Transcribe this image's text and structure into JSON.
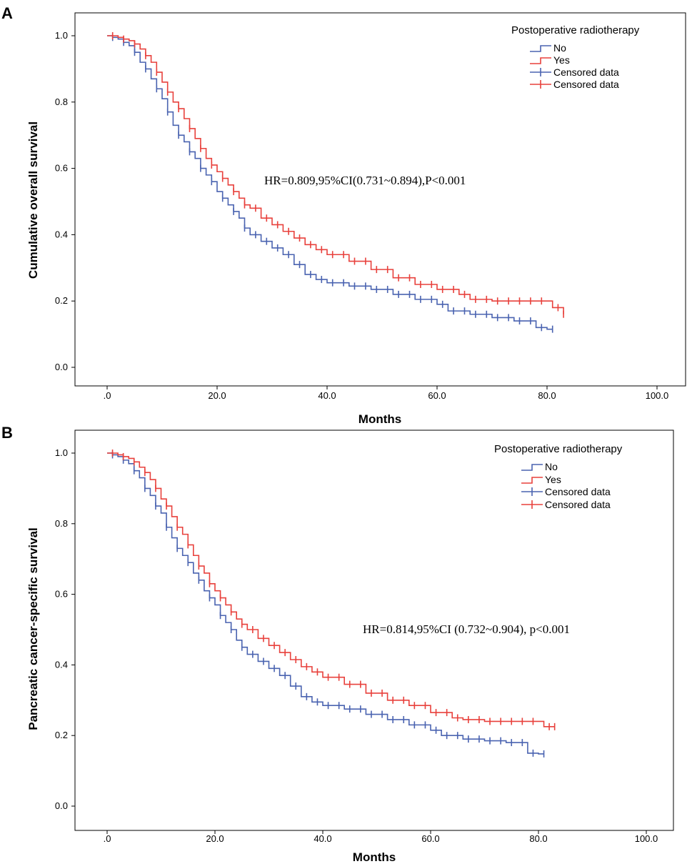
{
  "colors": {
    "no": "#4a63b0",
    "yes": "#e8413c"
  },
  "chart_data": [
    {
      "type": "line",
      "panel_label": "A",
      "xlabel": "Months",
      "ylabel": "Cumulative overall survival",
      "xlim": [
        -7,
        106
      ],
      "ylim": [
        -0.07,
        1.05
      ],
      "xticks": [
        0,
        20,
        40,
        60,
        80,
        100
      ],
      "xtick_labels": [
        ".0",
        "20.0",
        "40.0",
        "60.0",
        "80.0",
        "100.0"
      ],
      "yticks": [
        0.0,
        0.2,
        0.4,
        0.6,
        0.8,
        1.0
      ],
      "ytick_labels": [
        "0.0",
        "0.2",
        "0.4",
        "0.6",
        "0.8",
        "1.0"
      ],
      "legend": {
        "title": "Postoperative radiotherapy",
        "entries": [
          "No",
          "Yes",
          "Censored data",
          "Censored data"
        ]
      },
      "annotation": "HR=0.809,95%CI(0.731~0.894),P<0.001",
      "series": [
        {
          "name": "No",
          "color_key": "no",
          "x": [
            0,
            1,
            2,
            3,
            4,
            5,
            6,
            7,
            8,
            9,
            10,
            11,
            12,
            13,
            14,
            15,
            16,
            17,
            18,
            19,
            20,
            21,
            22,
            23,
            24,
            25,
            26,
            28,
            30,
            32,
            34,
            36,
            38,
            40,
            44,
            48,
            52,
            56,
            60,
            62,
            66,
            70,
            74,
            78,
            80,
            81
          ],
          "y": [
            1.0,
            0.995,
            0.99,
            0.98,
            0.97,
            0.95,
            0.92,
            0.9,
            0.87,
            0.84,
            0.81,
            0.77,
            0.73,
            0.7,
            0.68,
            0.65,
            0.63,
            0.6,
            0.58,
            0.56,
            0.53,
            0.51,
            0.49,
            0.47,
            0.45,
            0.42,
            0.4,
            0.38,
            0.36,
            0.34,
            0.31,
            0.28,
            0.265,
            0.255,
            0.245,
            0.235,
            0.22,
            0.205,
            0.19,
            0.17,
            0.16,
            0.15,
            0.14,
            0.12,
            0.115,
            0.115
          ],
          "censored_x": [
            1,
            3,
            5,
            7,
            9,
            11,
            13,
            15,
            17,
            19,
            21,
            23,
            25,
            27,
            29,
            31,
            33,
            35,
            37,
            39,
            41,
            43,
            45,
            47,
            49,
            51,
            53,
            55,
            57,
            59,
            61,
            63,
            65,
            67,
            69,
            71,
            73,
            75,
            77,
            79,
            81
          ]
        },
        {
          "name": "Yes",
          "color_key": "yes",
          "x": [
            0,
            1,
            2,
            3,
            4,
            5,
            6,
            7,
            8,
            9,
            10,
            11,
            12,
            13,
            14,
            15,
            16,
            17,
            18,
            19,
            20,
            21,
            22,
            23,
            24,
            25,
            26,
            28,
            30,
            32,
            34,
            36,
            38,
            40,
            44,
            48,
            52,
            56,
            60,
            64,
            66,
            70,
            80,
            81,
            83
          ],
          "y": [
            1.0,
            1.0,
            0.995,
            0.99,
            0.985,
            0.975,
            0.96,
            0.94,
            0.92,
            0.89,
            0.86,
            0.83,
            0.8,
            0.78,
            0.75,
            0.72,
            0.69,
            0.66,
            0.63,
            0.61,
            0.59,
            0.57,
            0.55,
            0.53,
            0.51,
            0.49,
            0.48,
            0.45,
            0.43,
            0.41,
            0.39,
            0.37,
            0.355,
            0.34,
            0.32,
            0.295,
            0.27,
            0.25,
            0.235,
            0.22,
            0.205,
            0.2,
            0.2,
            0.18,
            0.16
          ],
          "censored_x": [
            1,
            3,
            5,
            7,
            9,
            11,
            13,
            15,
            17,
            19,
            21,
            23,
            25,
            27,
            29,
            31,
            33,
            35,
            37,
            39,
            41,
            43,
            45,
            47,
            49,
            51,
            53,
            55,
            57,
            59,
            61,
            63,
            65,
            67,
            69,
            71,
            73,
            75,
            77,
            79,
            82,
            83
          ]
        }
      ]
    },
    {
      "type": "line",
      "panel_label": "B",
      "xlabel": "Months",
      "ylabel": "Pancreatic cancer-specific survival",
      "xlim": [
        -7,
        106
      ],
      "ylim": [
        -0.07,
        1.05
      ],
      "xticks": [
        0,
        20,
        40,
        60,
        80,
        100
      ],
      "xtick_labels": [
        ".0",
        "20.0",
        "40.0",
        "60.0",
        "80.0",
        "100.0"
      ],
      "yticks": [
        0.0,
        0.2,
        0.4,
        0.6,
        0.8,
        1.0
      ],
      "ytick_labels": [
        "0.0",
        "0.2",
        "0.4",
        "0.6",
        "0.8",
        "1.0"
      ],
      "legend": {
        "title": "Postoperative radiotherapy",
        "entries": [
          "No",
          "Yes",
          "Censored data",
          "Censored data"
        ]
      },
      "annotation": "HR=0.814,95%CI (0.732~0.904), p<0.001",
      "series": [
        {
          "name": "No",
          "color_key": "no",
          "x": [
            0,
            1,
            2,
            3,
            4,
            5,
            6,
            7,
            8,
            9,
            10,
            11,
            12,
            13,
            14,
            15,
            16,
            17,
            18,
            19,
            20,
            21,
            22,
            23,
            24,
            25,
            26,
            28,
            30,
            32,
            34,
            36,
            38,
            40,
            44,
            48,
            52,
            56,
            60,
            62,
            66,
            70,
            74,
            78,
            80,
            81
          ],
          "y": [
            1.0,
            0.995,
            0.99,
            0.98,
            0.97,
            0.95,
            0.93,
            0.9,
            0.88,
            0.85,
            0.83,
            0.79,
            0.76,
            0.73,
            0.71,
            0.69,
            0.66,
            0.64,
            0.61,
            0.59,
            0.57,
            0.54,
            0.52,
            0.5,
            0.47,
            0.45,
            0.43,
            0.41,
            0.39,
            0.37,
            0.34,
            0.31,
            0.295,
            0.285,
            0.275,
            0.26,
            0.245,
            0.23,
            0.215,
            0.2,
            0.19,
            0.185,
            0.18,
            0.15,
            0.148,
            0.148
          ],
          "censored_x": [
            1,
            3,
            5,
            7,
            9,
            11,
            13,
            15,
            17,
            19,
            21,
            23,
            25,
            27,
            29,
            31,
            33,
            35,
            37,
            39,
            41,
            43,
            45,
            47,
            49,
            51,
            53,
            55,
            57,
            59,
            61,
            63,
            65,
            67,
            69,
            71,
            73,
            75,
            77,
            79,
            81
          ]
        },
        {
          "name": "Yes",
          "color_key": "yes",
          "x": [
            0,
            1,
            2,
            3,
            4,
            5,
            6,
            7,
            8,
            9,
            10,
            11,
            12,
            13,
            14,
            15,
            16,
            17,
            18,
            19,
            20,
            21,
            22,
            23,
            24,
            25,
            26,
            28,
            30,
            32,
            34,
            36,
            38,
            40,
            44,
            48,
            52,
            56,
            60,
            64,
            66,
            70,
            80,
            81,
            83
          ],
          "y": [
            1.0,
            1.0,
            0.995,
            0.99,
            0.985,
            0.975,
            0.96,
            0.945,
            0.925,
            0.9,
            0.87,
            0.85,
            0.82,
            0.79,
            0.77,
            0.74,
            0.71,
            0.68,
            0.66,
            0.63,
            0.61,
            0.59,
            0.57,
            0.55,
            0.53,
            0.515,
            0.5,
            0.475,
            0.455,
            0.435,
            0.415,
            0.395,
            0.38,
            0.365,
            0.345,
            0.32,
            0.3,
            0.285,
            0.265,
            0.25,
            0.245,
            0.24,
            0.24,
            0.225,
            0.225
          ],
          "censored_x": [
            1,
            3,
            5,
            7,
            9,
            11,
            13,
            15,
            17,
            19,
            21,
            23,
            25,
            27,
            29,
            31,
            33,
            35,
            37,
            39,
            41,
            43,
            45,
            47,
            49,
            51,
            53,
            55,
            57,
            59,
            61,
            63,
            65,
            67,
            69,
            71,
            73,
            75,
            77,
            79,
            82,
            83
          ]
        }
      ]
    }
  ]
}
